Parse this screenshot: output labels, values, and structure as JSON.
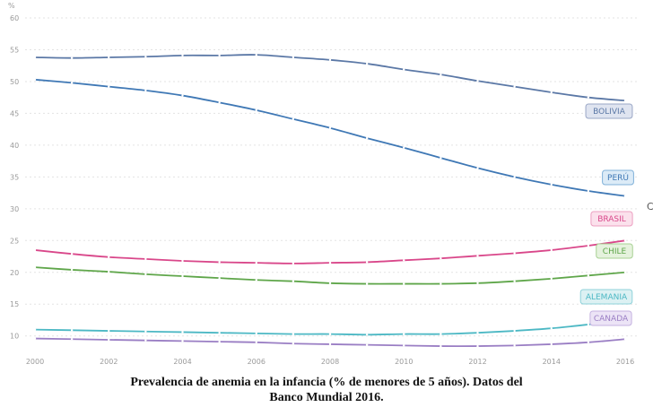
{
  "caption": "Prevalencia de anemia en la infancia (% de menores de 5 años). Datos del Banco Mundial 2016.",
  "edge_glyph": "C",
  "chart_data": {
    "type": "line",
    "unit_label": "%",
    "x": [
      2000,
      2001,
      2002,
      2003,
      2004,
      2005,
      2006,
      2007,
      2008,
      2009,
      2010,
      2011,
      2012,
      2013,
      2014,
      2015,
      2016
    ],
    "xticks": [
      2000,
      2002,
      2004,
      2006,
      2008,
      2010,
      2012,
      2014,
      2016
    ],
    "yticks": [
      10,
      15,
      20,
      25,
      30,
      35,
      40,
      45,
      50,
      55,
      60
    ],
    "xlim": [
      2000,
      2016
    ],
    "ylim": [
      7,
      60
    ],
    "grid": true,
    "series": [
      {
        "name": "BOLIVIA",
        "color": "#5b78a6",
        "label_bg": "#dfe4f0",
        "label_border": "#9aa7c6",
        "values": [
          53.8,
          53.7,
          53.8,
          53.9,
          54.1,
          54.1,
          54.2,
          53.8,
          53.4,
          52.8,
          51.9,
          51.1,
          50.1,
          49.2,
          48.3,
          47.5,
          47.0
        ]
      },
      {
        "name": "PERÚ",
        "color": "#3f78b5",
        "label_bg": "#dcebf7",
        "label_border": "#7fb0d9",
        "values": [
          50.3,
          49.8,
          49.2,
          48.6,
          47.8,
          46.7,
          45.5,
          44.1,
          42.7,
          41.1,
          39.6,
          38.0,
          36.4,
          35.0,
          33.8,
          32.8,
          32.0
        ]
      },
      {
        "name": "BRASIL",
        "color": "#d9478a",
        "label_bg": "#fbe1ec",
        "label_border": "#ec9fc1",
        "values": [
          23.5,
          22.9,
          22.4,
          22.1,
          21.8,
          21.6,
          21.5,
          21.4,
          21.5,
          21.6,
          21.9,
          22.2,
          22.6,
          23.0,
          23.5,
          24.2,
          25.0
        ]
      },
      {
        "name": "CHILE",
        "color": "#5fa64a",
        "label_bg": "#e5f2dd",
        "label_border": "#a7d193",
        "values": [
          20.8,
          20.4,
          20.1,
          19.7,
          19.4,
          19.1,
          18.8,
          18.6,
          18.3,
          18.2,
          18.2,
          18.2,
          18.3,
          18.6,
          19.0,
          19.5,
          20.0
        ]
      },
      {
        "name": "ALEMANIA",
        "color": "#4cb8c4",
        "label_bg": "#dcf1f3",
        "label_border": "#8fd2da",
        "values": [
          11.0,
          10.9,
          10.8,
          10.7,
          10.6,
          10.5,
          10.4,
          10.3,
          10.3,
          10.2,
          10.3,
          10.3,
          10.5,
          10.8,
          11.2,
          11.8,
          12.5
        ]
      },
      {
        "name": "CANADA",
        "color": "#9a7ec4",
        "label_bg": "#ece4f6",
        "label_border": "#c4b1e0",
        "values": [
          9.6,
          9.5,
          9.4,
          9.3,
          9.2,
          9.1,
          9.0,
          8.8,
          8.7,
          8.6,
          8.5,
          8.4,
          8.4,
          8.5,
          8.7,
          9.0,
          9.5
        ]
      }
    ]
  }
}
